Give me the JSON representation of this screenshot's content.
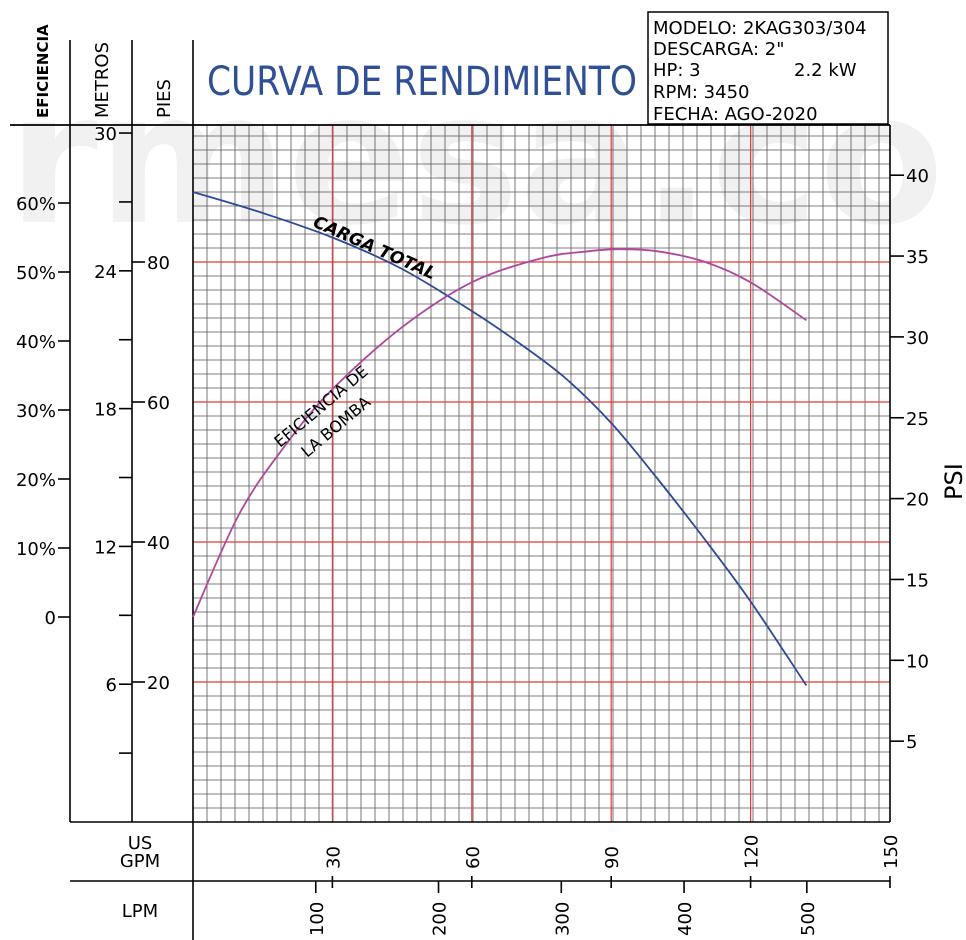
{
  "watermark": "rmesa.co",
  "title": "CURVA DE RENDIMIENTO",
  "info_box": {
    "model": "MODELO: 2KAG303/304",
    "discharge": "DESCARGA: 2\"",
    "hp": "HP: 3",
    "kw": "2.2 kW",
    "rpm": "RPM: 3450",
    "date": "FECHA: AGO-2020"
  },
  "axis_titles": {
    "efficiency": "EFICIENCIA",
    "meters": "METROS",
    "feet": "PIES",
    "psi": "PSI",
    "usgpm_line1": "US",
    "usgpm_line2": "GPM",
    "lpm": "LPM"
  },
  "colors": {
    "head_curve": "#2c4a96",
    "efficiency_curve": "#b0479c",
    "major_grid": "#e53935",
    "minor_grid": "#555555",
    "title": "#2f4f97"
  },
  "chart_data": {
    "type": "line",
    "title": "CURVA DE RENDIMIENTO",
    "x_axis": {
      "label": "US GPM",
      "range": [
        0,
        150
      ],
      "ticks": [
        "30",
        "60",
        "90",
        "120",
        "150"
      ]
    },
    "x_axis_secondary": {
      "label": "LPM",
      "ticks": [
        "100",
        "200",
        "300",
        "400",
        "500"
      ]
    },
    "y_axis_feet": {
      "label": "PIES",
      "range": [
        0,
        98
      ],
      "ticks": [
        "20",
        "40",
        "60",
        "80"
      ]
    },
    "y_axis_meters": {
      "label": "METROS",
      "ticks": [
        "6",
        "12",
        "18",
        "24",
        "30"
      ]
    },
    "y_axis_psi": {
      "label": "PSI",
      "ticks": [
        "5",
        "10",
        "15",
        "20",
        "25",
        "30",
        "35",
        "40"
      ]
    },
    "y_axis_efficiency": {
      "label": "EFICIENCIA",
      "ticks": [
        "0",
        "10%",
        "20%",
        "30%",
        "40%",
        "50%",
        "60%"
      ]
    },
    "series": [
      {
        "name": "CARGA TOTAL",
        "unit": "ft",
        "x": [
          0,
          15,
          30,
          45,
          60,
          70,
          80,
          90,
          100,
          110,
          120,
          132
        ],
        "y": [
          90,
          87,
          83.5,
          79,
          73,
          68.5,
          63.5,
          57,
          49,
          40.5,
          31.5,
          19.5
        ]
      },
      {
        "name": "EFICIENCIA DE LA BOMBA",
        "unit": "%",
        "x": [
          0,
          10,
          20,
          30,
          45,
          60,
          75,
          85,
          92,
          100,
          110,
          120,
          132
        ],
        "y": [
          0,
          15,
          25,
          33,
          42,
          48.5,
          52,
          53,
          53.3,
          53,
          51.5,
          48.5,
          43
        ]
      }
    ],
    "grid": true
  }
}
